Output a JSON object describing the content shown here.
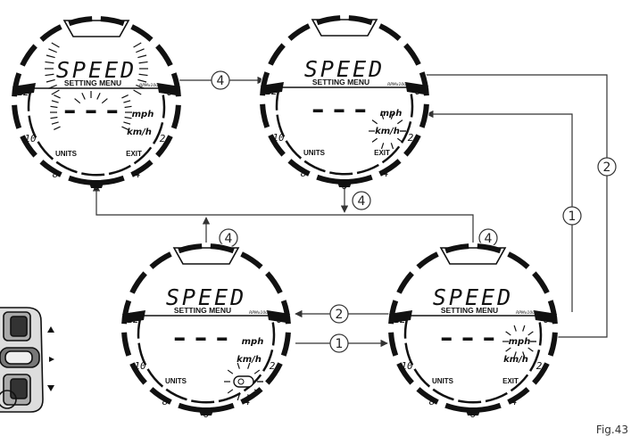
{
  "figure": {
    "label": "Fig.43"
  },
  "gauge": {
    "title": "SPEED",
    "menu_label": "SETTING MENU",
    "rpm_label": "RPMx1000",
    "dash_text": "– – –",
    "mph_label": "mph",
    "kmh_label": "km/h",
    "units_label": "UNITS",
    "exit_label": "EXIT",
    "ticks": [
      "12",
      "10",
      "8",
      "6",
      "4",
      "2",
      "0"
    ]
  },
  "steps": {
    "select": "4",
    "scroll_down": "1",
    "scroll_up": "2"
  },
  "colors": {
    "ink": "#111111",
    "line": "#333333",
    "paper": "#ffffff"
  }
}
